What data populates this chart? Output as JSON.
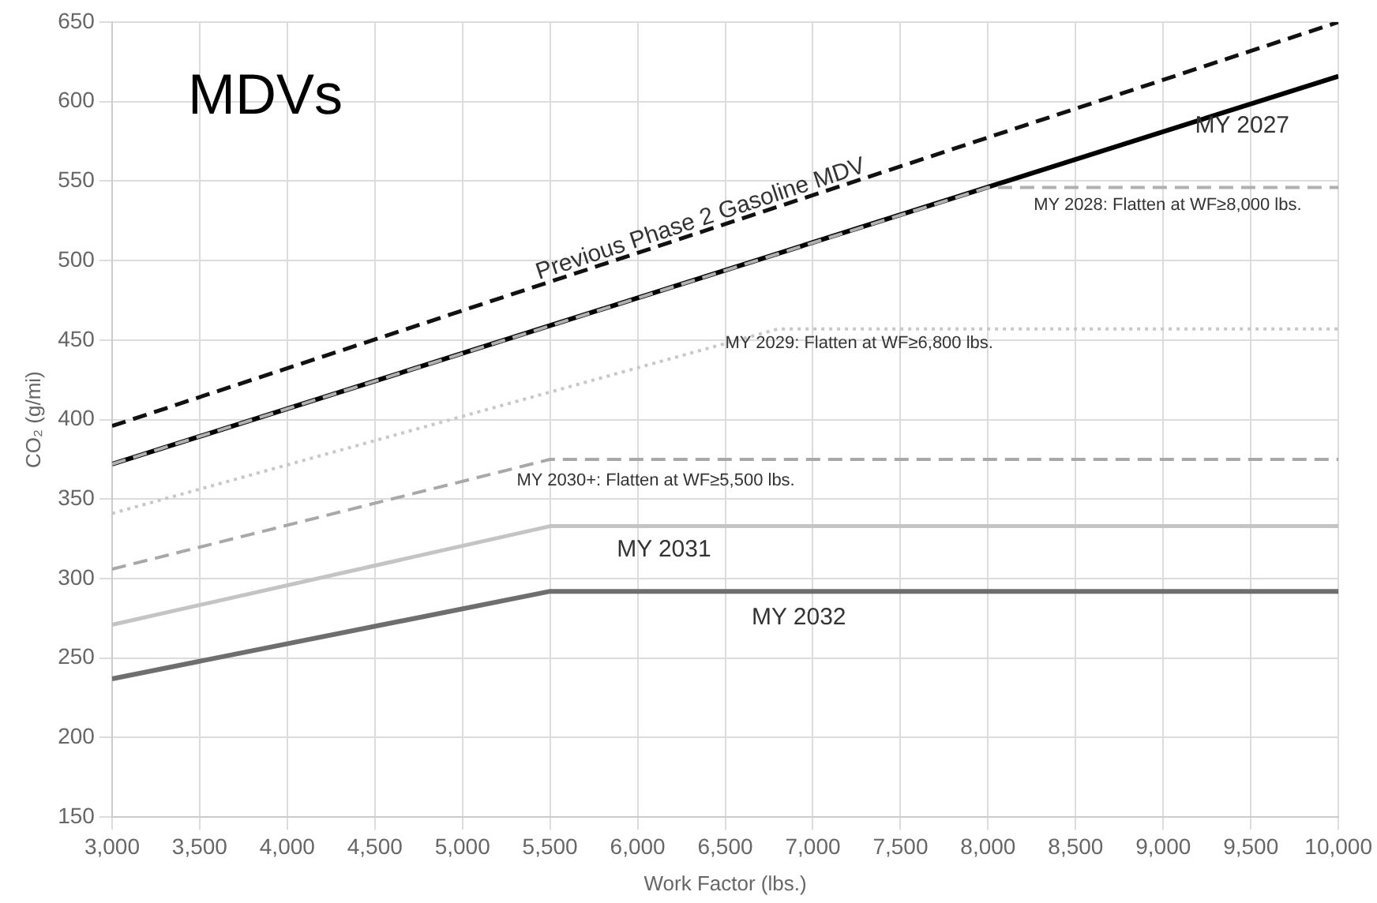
{
  "chart_data": {
    "type": "line",
    "title": "MDVs",
    "xlabel": "Work Factor (lbs.)",
    "ylabel": "CO₂ (g/mi)",
    "xlim": [
      3000,
      10000
    ],
    "xticks": [
      {
        "value": 3000,
        "label": "3,000"
      },
      {
        "value": 3500,
        "label": "3,500"
      },
      {
        "value": 4000,
        "label": "4,000"
      },
      {
        "value": 4500,
        "label": "4,500"
      },
      {
        "value": 5000,
        "label": "5,000"
      },
      {
        "value": 5500,
        "label": "5,500"
      },
      {
        "value": 6000,
        "label": "6,000"
      },
      {
        "value": 6500,
        "label": "6,500"
      },
      {
        "value": 7000,
        "label": "7,000"
      },
      {
        "value": 7500,
        "label": "7,500"
      },
      {
        "value": 8000,
        "label": "8,000"
      },
      {
        "value": 8500,
        "label": "8,500"
      },
      {
        "value": 9000,
        "label": "9,000"
      },
      {
        "value": 9500,
        "label": "9,500"
      },
      {
        "value": 10000,
        "label": "10,000"
      }
    ],
    "ylim": [
      150,
      650
    ],
    "yticks": [
      150,
      200,
      250,
      300,
      350,
      400,
      450,
      500,
      550,
      600,
      650
    ],
    "grid": true,
    "marker": "none",
    "series": [
      {
        "name": "Previous Phase 2 Gasoline MDV",
        "color": "#111111",
        "line_style": "dashed",
        "x": [
          3000,
          10000
        ],
        "values": [
          396,
          650
        ]
      },
      {
        "name": "MY 2027",
        "color": "#000000",
        "line_style": "solid",
        "x": [
          3000,
          10000
        ],
        "values": [
          372,
          616
        ]
      },
      {
        "name": "MY 2028: Flatten at WF≥8,000 lbs.",
        "color": "#b0b0b0",
        "line_style": "dashed",
        "x": [
          3000,
          8000,
          10000
        ],
        "values": [
          372,
          546,
          546
        ]
      },
      {
        "name": "MY 2029: Flatten at WF≥6,800 lbs.",
        "color": "#c8c8c8",
        "line_style": "dotted",
        "x": [
          3000,
          6800,
          10000
        ],
        "values": [
          341,
          457,
          457
        ]
      },
      {
        "name": "MY 2030+: Flatten at WF≥5,500 lbs.",
        "color": "#a8a8a8",
        "line_style": "dashed",
        "x": [
          3000,
          5500,
          10000
        ],
        "values": [
          306,
          375,
          375
        ]
      },
      {
        "name": "MY 2031",
        "color": "#c4c4c4",
        "line_style": "solid",
        "x": [
          3000,
          5500,
          10000
        ],
        "values": [
          271,
          333,
          333
        ]
      },
      {
        "name": "MY 2032",
        "color": "#6e6e6e",
        "line_style": "solid",
        "x": [
          3000,
          5500,
          10000
        ],
        "values": [
          237,
          292,
          292
        ]
      }
    ]
  }
}
